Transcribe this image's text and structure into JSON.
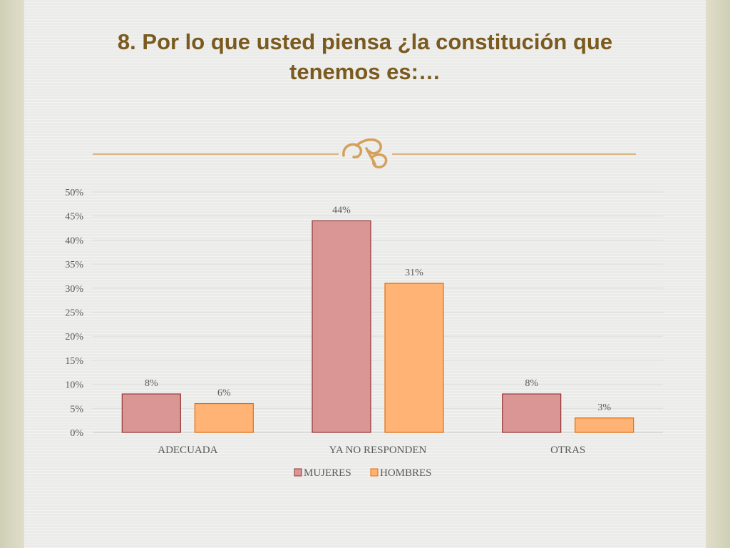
{
  "slide": {
    "title": "8. Por lo que usted piensa ¿la constitución que tenemos es:…",
    "ornament_icon": "ornate-flourish-icon",
    "colors": {
      "title": "#7a5a1e",
      "ornament": "#d4a15c"
    }
  },
  "chart_data": {
    "type": "bar",
    "title": "",
    "xlabel": "",
    "ylabel": "",
    "categories": [
      "ADECUADA",
      "YA NO RESPONDEN",
      "OTRAS"
    ],
    "series": [
      {
        "name": "MUJERES",
        "values": [
          8,
          44,
          8
        ],
        "labels": [
          "8%",
          "44%",
          "8%"
        ],
        "color": "#d99694",
        "stroke": "#943634"
      },
      {
        "name": "HOMBRES",
        "values": [
          6,
          31,
          3
        ],
        "labels": [
          "6%",
          "31%",
          "3%"
        ],
        "color": "#ffb375",
        "stroke": "#e46c0a"
      }
    ],
    "ylim": [
      0,
      50
    ],
    "yticks": [
      "0%",
      "5%",
      "10%",
      "15%",
      "20%",
      "25%",
      "30%",
      "35%",
      "40%",
      "45%",
      "50%"
    ],
    "grid": true,
    "legend_position": "bottom",
    "units": "percent"
  }
}
